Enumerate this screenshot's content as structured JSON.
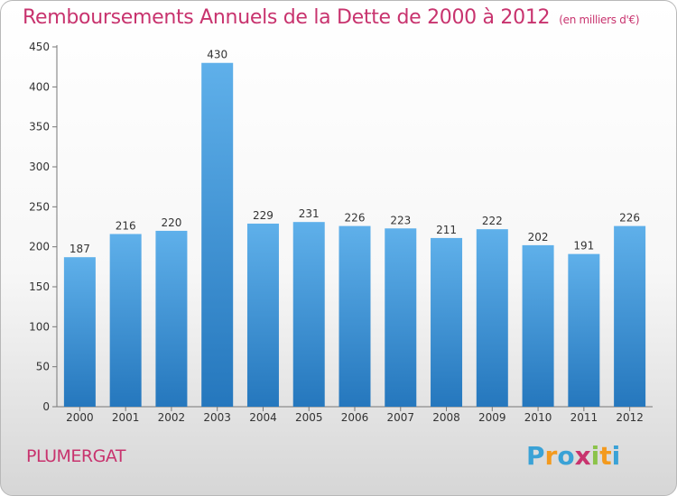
{
  "title": "Remboursements Annuels de la Dette de 2000 à 2012",
  "unit_note": "(en milliers d'€)",
  "city": "PLUMERGAT",
  "logo": {
    "text": "Proxiti",
    "letters": [
      "P",
      "r",
      "o",
      "x",
      "i",
      "t",
      "i"
    ],
    "colors": [
      "#3aa2d6",
      "#f39a1e",
      "#3aa2d6",
      "#c8336e",
      "#8bc34a",
      "#f39a1e",
      "#3aa2d6"
    ]
  },
  "colors": {
    "bar_top": "#5fb0ea",
    "bar_bottom": "#2577bd",
    "title": "#c8336e"
  },
  "chart_data": {
    "type": "bar",
    "categories": [
      "2000",
      "2001",
      "2002",
      "2003",
      "2004",
      "2005",
      "2006",
      "2007",
      "2008",
      "2009",
      "2010",
      "2011",
      "2012"
    ],
    "values": [
      187,
      216,
      220,
      430,
      229,
      231,
      226,
      223,
      211,
      222,
      202,
      191,
      226
    ],
    "yticks": [
      0,
      50,
      100,
      150,
      200,
      250,
      300,
      350,
      400,
      450
    ],
    "ylim": [
      0,
      450
    ],
    "grid": false,
    "legend": "none"
  }
}
